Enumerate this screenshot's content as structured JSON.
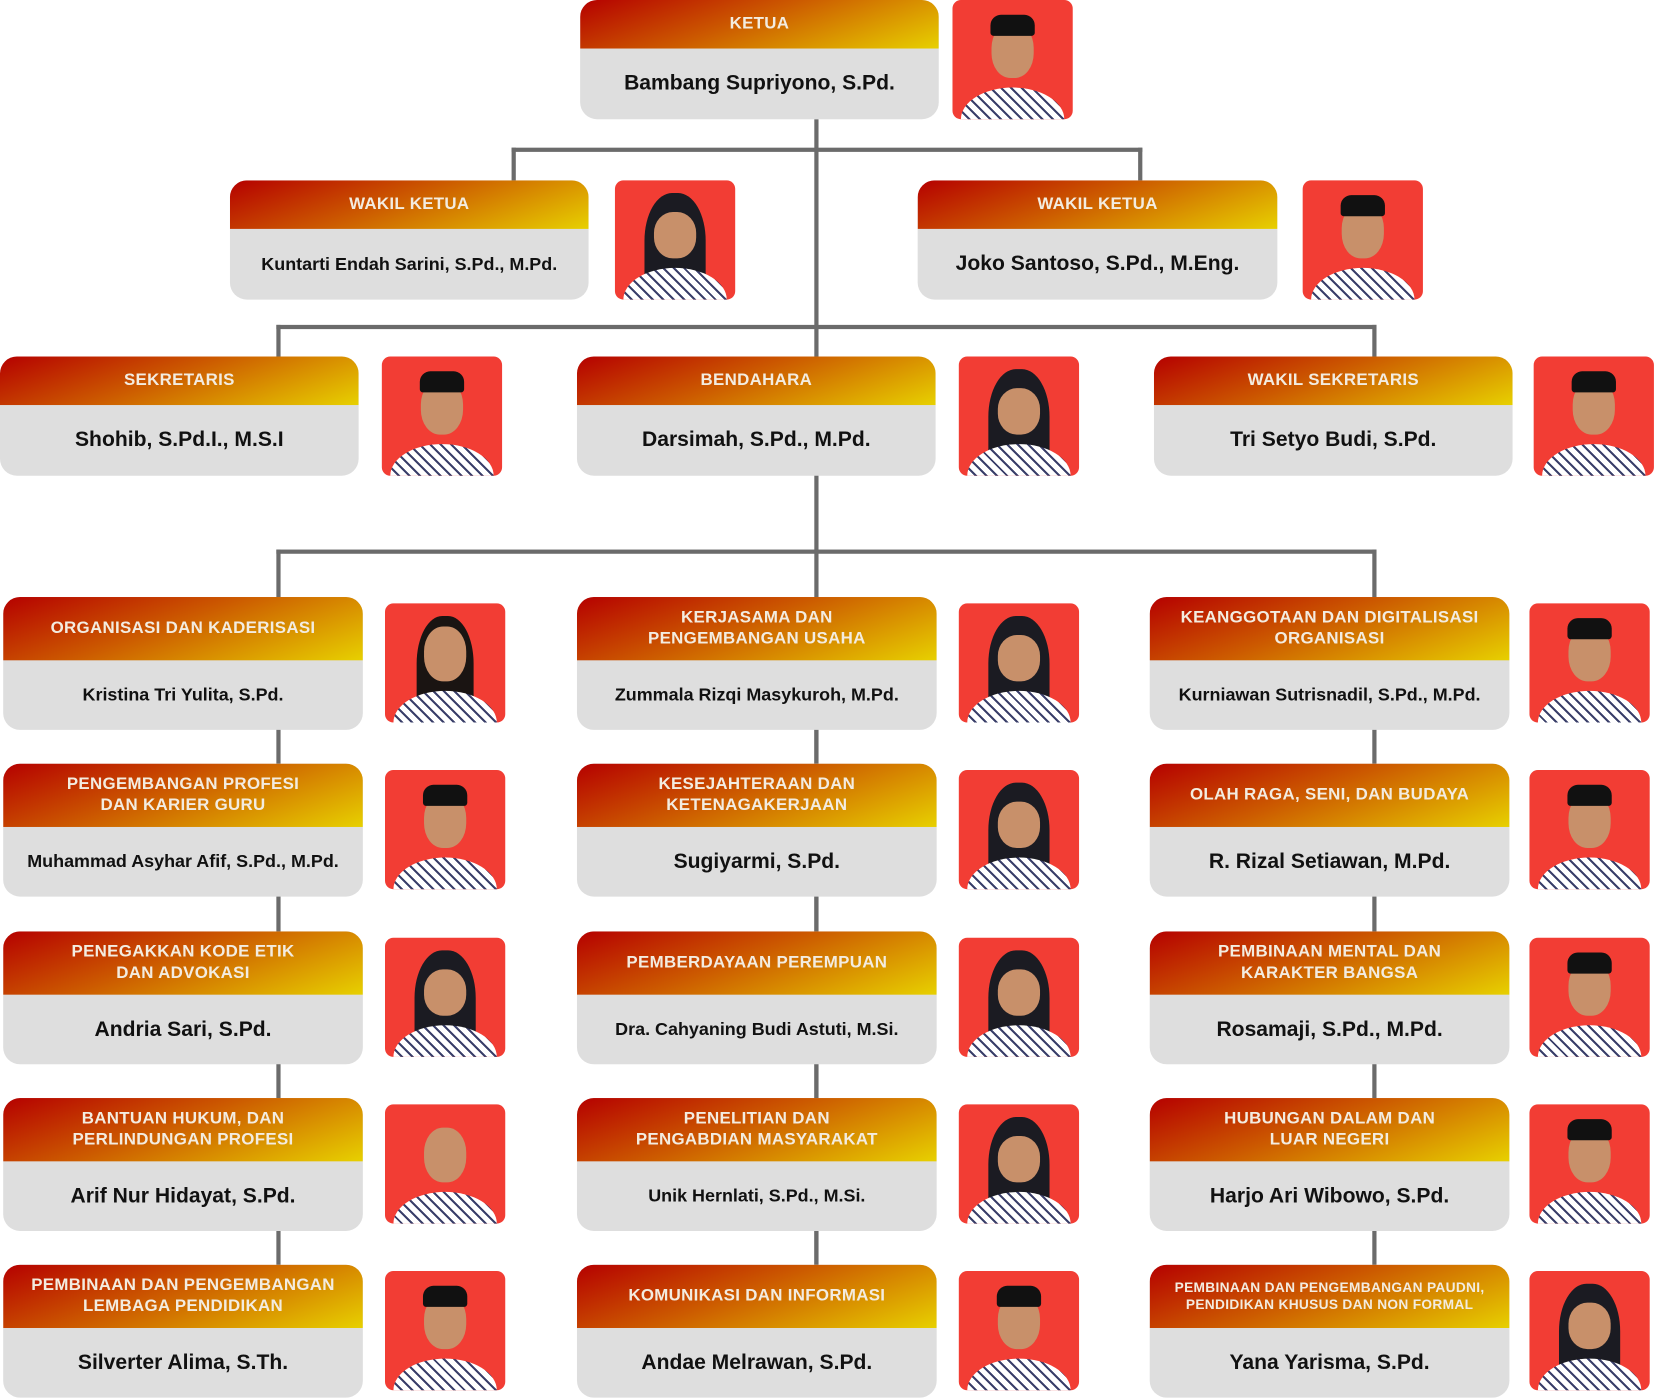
{
  "ketua": {
    "title": "KETUA",
    "name": "Bambang Supriyono, S.Pd.",
    "photo": "man-peci"
  },
  "wakil_ketua": [
    {
      "title": "WAKIL KETUA",
      "name": "Kuntarti Endah Sarini, S.Pd., M.Pd.",
      "photo": "woman-hijab"
    },
    {
      "title": "WAKIL KETUA",
      "name": "Joko Santoso, S.Pd., M.Eng.",
      "photo": "man-peci"
    }
  ],
  "row3": [
    {
      "title": "SEKRETARIS",
      "name": "Shohib, S.Pd.I., M.S.I",
      "photo": "man-peci"
    },
    {
      "title": "BENDAHARA",
      "name": "Darsimah, S.Pd., M.Pd.",
      "photo": "woman-hijab"
    },
    {
      "title": "WAKIL SEKRETARIS",
      "name": "Tri Setyo Budi, S.Pd.",
      "photo": "man-peci"
    }
  ],
  "sections": [
    [
      {
        "title": "ORGANISASI DAN KADERISASI",
        "name": "Kristina Tri Yulita, S.Pd.",
        "photo": "woman-hair"
      },
      {
        "title": "PENGEMBANGAN PROFESI\nDAN KARIER GURU",
        "name": "Muhammad Asyhar Afif, S.Pd., M.Pd.",
        "photo": "man-peci"
      },
      {
        "title": "PENEGAKKAN KODE ETIK\nDAN ADVOKASI",
        "name": "Andria Sari, S.Pd.",
        "photo": "woman-hijab"
      },
      {
        "title": "BANTUAN HUKUM, DAN\nPERLINDUNGAN PROFESI",
        "name": "Arif Nur Hidayat, S.Pd.",
        "photo": "man"
      },
      {
        "title": "PEMBINAAN DAN PENGEMBANGAN\nLEMBAGA PENDIDIKAN",
        "name": "Silverter Alima, S.Th.",
        "photo": "man-peci"
      }
    ],
    [
      {
        "title": "KERJASAMA DAN\nPENGEMBANGAN USAHA",
        "name": "Zummala Rizqi Masykuroh, M.Pd.",
        "photo": "woman-hijab"
      },
      {
        "title": "KESEJAHTERAAN DAN\nKETENAGAKERJAAN",
        "name": "Sugiyarmi, S.Pd.",
        "photo": "woman-hijab"
      },
      {
        "title": "PEMBERDAYAAN PEREMPUAN",
        "name": "Dra. Cahyaning Budi Astuti, M.Si.",
        "photo": "woman-hijab"
      },
      {
        "title": "PENELITIAN DAN\nPENGABDIAN MASYARAKAT",
        "name": "Unik Hernlati, S.Pd., M.Si.",
        "photo": "woman-hijab"
      },
      {
        "title": "KOMUNIKASI DAN INFORMASI",
        "name": "Andae Melrawan, S.Pd.",
        "photo": "man-peci"
      }
    ],
    [
      {
        "title": "KEANGGOTAAN DAN DIGITALISASI\nORGANISASI",
        "name": "Kurniawan Sutrisnadil, S.Pd., M.Pd.",
        "photo": "man-peci"
      },
      {
        "title": "OLAH RAGA, SENI, DAN BUDAYA",
        "name": "R. Rizal Setiawan, M.Pd.",
        "photo": "man-peci"
      },
      {
        "title": "PEMBINAAN MENTAL DAN\nKARAKTER BANGSA",
        "name": "Rosamaji, S.Pd., M.Pd.",
        "photo": "man-peci"
      },
      {
        "title": "HUBUNGAN DALAM DAN\nLUAR NEGERI",
        "name": "Harjo Ari Wibowo, S.Pd.",
        "photo": "man-peci"
      },
      {
        "title": "PEMBINAAN DAN PENGEMBANGAN PAUDNI,\nPENDIDIKAN KHUSUS DAN NON FORMAL",
        "name": "Yana Yarisma, S.Pd.",
        "photo": "woman-hijab"
      }
    ]
  ],
  "colors": {
    "photo_bg": "#f23d34",
    "connector": "#6b6b6b",
    "header_start": "#b50000",
    "header_end": "#e7d000",
    "card_bg": "#dedede"
  }
}
